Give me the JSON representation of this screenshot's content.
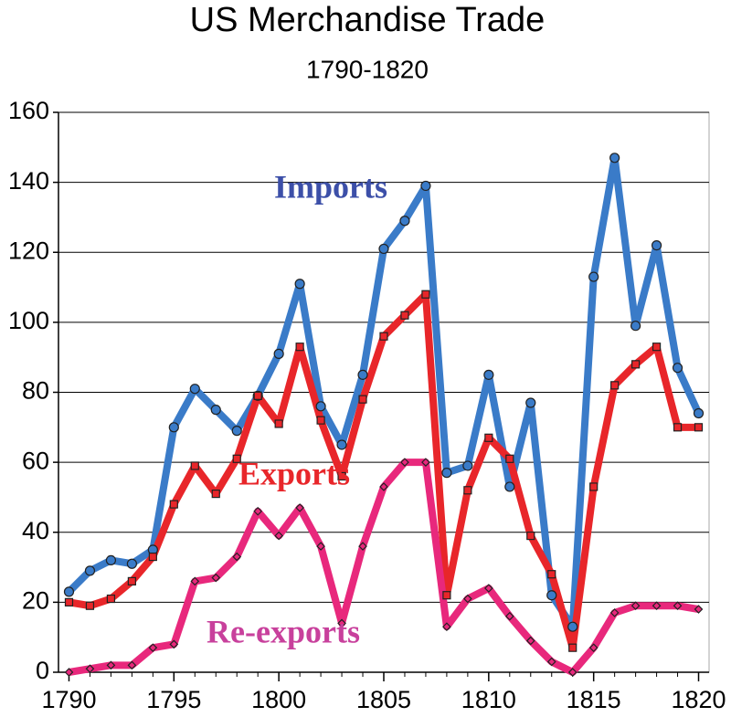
{
  "chart_data": {
    "type": "line",
    "title": "US Merchandise Trade",
    "subtitle": "1790-1820",
    "x": [
      1790,
      1791,
      1792,
      1793,
      1794,
      1795,
      1796,
      1797,
      1798,
      1799,
      1800,
      1801,
      1802,
      1803,
      1804,
      1805,
      1806,
      1807,
      1808,
      1809,
      1810,
      1811,
      1812,
      1813,
      1814,
      1815,
      1816,
      1817,
      1818,
      1819,
      1820
    ],
    "series": [
      {
        "name": "Imports",
        "color": "#3a7bc8",
        "label_color": "#3c4fa8",
        "marker": "circle",
        "values": [
          23,
          29,
          32,
          31,
          35,
          70,
          81,
          75,
          69,
          79,
          91,
          111,
          76,
          65,
          85,
          121,
          129,
          139,
          57,
          59,
          85,
          53,
          77,
          22,
          13,
          113,
          147,
          99,
          122,
          87,
          74
        ]
      },
      {
        "name": "Exports",
        "color": "#e8262a",
        "label_color": "#e8262a",
        "marker": "square",
        "values": [
          20,
          19,
          21,
          26,
          33,
          48,
          59,
          51,
          61,
          79,
          71,
          93,
          72,
          56,
          78,
          96,
          102,
          108,
          22,
          52,
          67,
          61,
          39,
          28,
          7,
          53,
          82,
          88,
          93,
          70,
          70
        ]
      },
      {
        "name": "Re-exports",
        "color": "#e8287c",
        "label_color": "#c8409c",
        "marker": "diamond",
        "values": [
          0,
          1,
          2,
          2,
          7,
          8,
          26,
          27,
          33,
          46,
          39,
          47,
          36,
          14,
          36,
          53,
          60,
          60,
          13,
          21,
          24,
          16,
          9,
          3,
          0,
          7,
          17,
          19,
          19,
          19,
          18
        ]
      }
    ],
    "xlim": [
      1789.5,
      1820.5
    ],
    "xticks": [
      1790,
      1795,
      1800,
      1805,
      1810,
      1815,
      1820
    ],
    "ylim": [
      0,
      160
    ],
    "yticks": [
      0,
      20,
      40,
      60,
      80,
      100,
      120,
      140,
      160
    ],
    "grid": true
  }
}
